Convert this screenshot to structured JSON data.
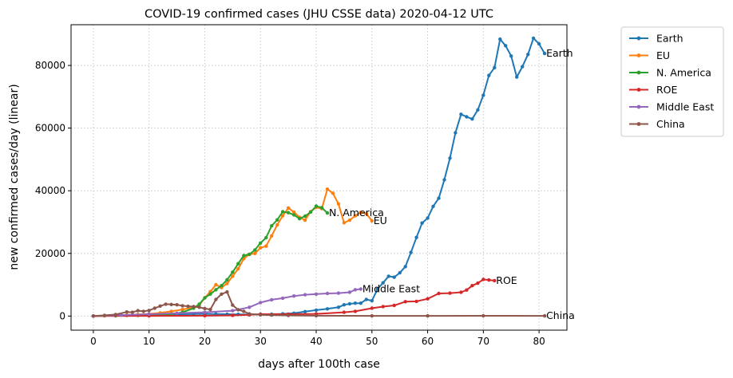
{
  "chart_data": {
    "type": "line",
    "title": "COVID-19 confirmed cases (JHU CSSE data) 2020-04-12 UTC",
    "xlabel": "days after 100th case",
    "ylabel": "new confirmed cases/day (linear)",
    "xlim": [
      -4,
      85
    ],
    "ylim": [
      -4500,
      93000
    ],
    "xticks": [
      0,
      10,
      20,
      30,
      40,
      50,
      60,
      70,
      80
    ],
    "yticks": [
      0,
      20000,
      40000,
      60000,
      80000
    ],
    "grid": true,
    "legend_position": "outside-top-right",
    "series": [
      {
        "name": "Earth",
        "color": "#1f77b4",
        "end_label": "Earth",
        "points": [
          [
            0,
            0
          ],
          [
            2,
            100
          ],
          [
            4,
            150
          ],
          [
            6,
            200
          ],
          [
            8,
            300
          ],
          [
            10,
            400
          ],
          [
            12,
            500
          ],
          [
            14,
            550
          ],
          [
            16,
            600
          ],
          [
            18,
            650
          ],
          [
            20,
            700
          ],
          [
            22,
            650
          ],
          [
            24,
            600
          ],
          [
            26,
            550
          ],
          [
            28,
            500
          ],
          [
            30,
            500
          ],
          [
            32,
            600
          ],
          [
            34,
            700
          ],
          [
            36,
            900
          ],
          [
            38,
            1400
          ],
          [
            40,
            1900
          ],
          [
            42,
            2300
          ],
          [
            44,
            2800
          ],
          [
            45,
            3600
          ],
          [
            46,
            3900
          ],
          [
            47,
            4100
          ],
          [
            48,
            4100
          ],
          [
            49,
            5300
          ],
          [
            50,
            4900
          ],
          [
            51,
            8600
          ],
          [
            52,
            10600
          ],
          [
            53,
            12700
          ],
          [
            54,
            12400
          ],
          [
            55,
            13800
          ],
          [
            56,
            15800
          ],
          [
            57,
            20300
          ],
          [
            58,
            25100
          ],
          [
            59,
            29700
          ],
          [
            60,
            31300
          ],
          [
            61,
            35000
          ],
          [
            62,
            37600
          ],
          [
            63,
            43500
          ],
          [
            64,
            50400
          ],
          [
            65,
            58500
          ],
          [
            66,
            64400
          ],
          [
            67,
            63600
          ],
          [
            68,
            62900
          ],
          [
            69,
            65800
          ],
          [
            70,
            70500
          ],
          [
            71,
            76800
          ],
          [
            72,
            79300
          ],
          [
            73,
            88400
          ],
          [
            74,
            86300
          ],
          [
            75,
            83000
          ],
          [
            76,
            76300
          ],
          [
            77,
            79600
          ],
          [
            78,
            83500
          ],
          [
            79,
            88700
          ],
          [
            80,
            86900
          ],
          [
            81,
            83800
          ]
        ]
      },
      {
        "name": "EU",
        "color": "#ff7f0e",
        "end_label": "EU",
        "points": [
          [
            0,
            0
          ],
          [
            2,
            100
          ],
          [
            4,
            200
          ],
          [
            6,
            300
          ],
          [
            8,
            500
          ],
          [
            10,
            700
          ],
          [
            12,
            1000
          ],
          [
            14,
            1500
          ],
          [
            16,
            2100
          ],
          [
            18,
            2800
          ],
          [
            19,
            3500
          ],
          [
            20,
            5800
          ],
          [
            21,
            7800
          ],
          [
            22,
            10000
          ],
          [
            23,
            9100
          ],
          [
            24,
            10400
          ],
          [
            25,
            12700
          ],
          [
            26,
            15100
          ],
          [
            27,
            18300
          ],
          [
            28,
            19700
          ],
          [
            29,
            20000
          ],
          [
            30,
            21800
          ],
          [
            31,
            22300
          ],
          [
            32,
            25600
          ],
          [
            33,
            29100
          ],
          [
            34,
            32000
          ],
          [
            35,
            34500
          ],
          [
            36,
            33200
          ],
          [
            37,
            31500
          ],
          [
            38,
            30600
          ],
          [
            39,
            33300
          ],
          [
            40,
            34700
          ],
          [
            41,
            34300
          ],
          [
            42,
            40500
          ],
          [
            43,
            39200
          ],
          [
            44,
            35800
          ],
          [
            45,
            29800
          ],
          [
            46,
            30600
          ],
          [
            47,
            32000
          ],
          [
            48,
            33100
          ],
          [
            49,
            32700
          ],
          [
            50,
            30400
          ]
        ]
      },
      {
        "name": "N. America",
        "color": "#2ca02c",
        "end_label": "N. America",
        "points": [
          [
            0,
            0
          ],
          [
            4,
            100
          ],
          [
            8,
            200
          ],
          [
            12,
            400
          ],
          [
            14,
            600
          ],
          [
            16,
            1200
          ],
          [
            18,
            2500
          ],
          [
            19,
            3800
          ],
          [
            20,
            5800
          ],
          [
            21,
            7000
          ],
          [
            22,
            8400
          ],
          [
            23,
            9700
          ],
          [
            24,
            11600
          ],
          [
            25,
            14000
          ],
          [
            26,
            16700
          ],
          [
            27,
            19300
          ],
          [
            28,
            19700
          ],
          [
            29,
            21100
          ],
          [
            30,
            23300
          ],
          [
            31,
            25000
          ],
          [
            32,
            28800
          ],
          [
            33,
            30700
          ],
          [
            34,
            33300
          ],
          [
            35,
            33000
          ],
          [
            36,
            32300
          ],
          [
            37,
            31100
          ],
          [
            38,
            31900
          ],
          [
            39,
            33200
          ],
          [
            40,
            35100
          ],
          [
            41,
            34600
          ],
          [
            42,
            32900
          ]
        ]
      },
      {
        "name": "ROE",
        "color": "#d62728",
        "end_label": "ROE",
        "points": [
          [
            0,
            0
          ],
          [
            10,
            50
          ],
          [
            20,
            100
          ],
          [
            25,
            200
          ],
          [
            28,
            400
          ],
          [
            30,
            600
          ],
          [
            35,
            600
          ],
          [
            40,
            700
          ],
          [
            45,
            1200
          ],
          [
            47,
            1500
          ],
          [
            50,
            2500
          ],
          [
            52,
            3000
          ],
          [
            54,
            3400
          ],
          [
            56,
            4600
          ],
          [
            58,
            4700
          ],
          [
            60,
            5500
          ],
          [
            62,
            7200
          ],
          [
            64,
            7300
          ],
          [
            66,
            7600
          ],
          [
            67,
            8300
          ],
          [
            68,
            9700
          ],
          [
            69,
            10500
          ],
          [
            70,
            11700
          ],
          [
            71,
            11500
          ],
          [
            72,
            11300
          ]
        ]
      },
      {
        "name": "Middle East",
        "color": "#9467bd",
        "end_label": "Middle East",
        "points": [
          [
            0,
            0
          ],
          [
            5,
            300
          ],
          [
            10,
            600
          ],
          [
            15,
            900
          ],
          [
            20,
            1200
          ],
          [
            25,
            1700
          ],
          [
            28,
            2800
          ],
          [
            30,
            4300
          ],
          [
            32,
            5200
          ],
          [
            34,
            5700
          ],
          [
            36,
            6400
          ],
          [
            38,
            6800
          ],
          [
            40,
            7000
          ],
          [
            42,
            7200
          ],
          [
            44,
            7300
          ],
          [
            46,
            7600
          ],
          [
            47,
            8400
          ],
          [
            48,
            8600
          ]
        ]
      },
      {
        "name": "China",
        "color": "#8c564b",
        "end_label": "China",
        "points": [
          [
            0,
            0
          ],
          [
            2,
            200
          ],
          [
            4,
            500
          ],
          [
            6,
            1300
          ],
          [
            7,
            1200
          ],
          [
            8,
            1700
          ],
          [
            9,
            1500
          ],
          [
            10,
            1800
          ],
          [
            11,
            2500
          ],
          [
            12,
            3200
          ],
          [
            13,
            3800
          ],
          [
            14,
            3700
          ],
          [
            15,
            3600
          ],
          [
            16,
            3300
          ],
          [
            17,
            3100
          ],
          [
            18,
            3000
          ],
          [
            19,
            2800
          ],
          [
            20,
            2400
          ],
          [
            21,
            2100
          ],
          [
            22,
            5300
          ],
          [
            23,
            7000
          ],
          [
            24,
            7700
          ],
          [
            25,
            3500
          ],
          [
            26,
            2000
          ],
          [
            27,
            1500
          ],
          [
            28,
            700
          ],
          [
            30,
            400
          ],
          [
            32,
            300
          ],
          [
            35,
            200
          ],
          [
            40,
            100
          ],
          [
            50,
            50
          ],
          [
            60,
            50
          ],
          [
            70,
            80
          ],
          [
            81,
            60
          ]
        ]
      }
    ]
  }
}
